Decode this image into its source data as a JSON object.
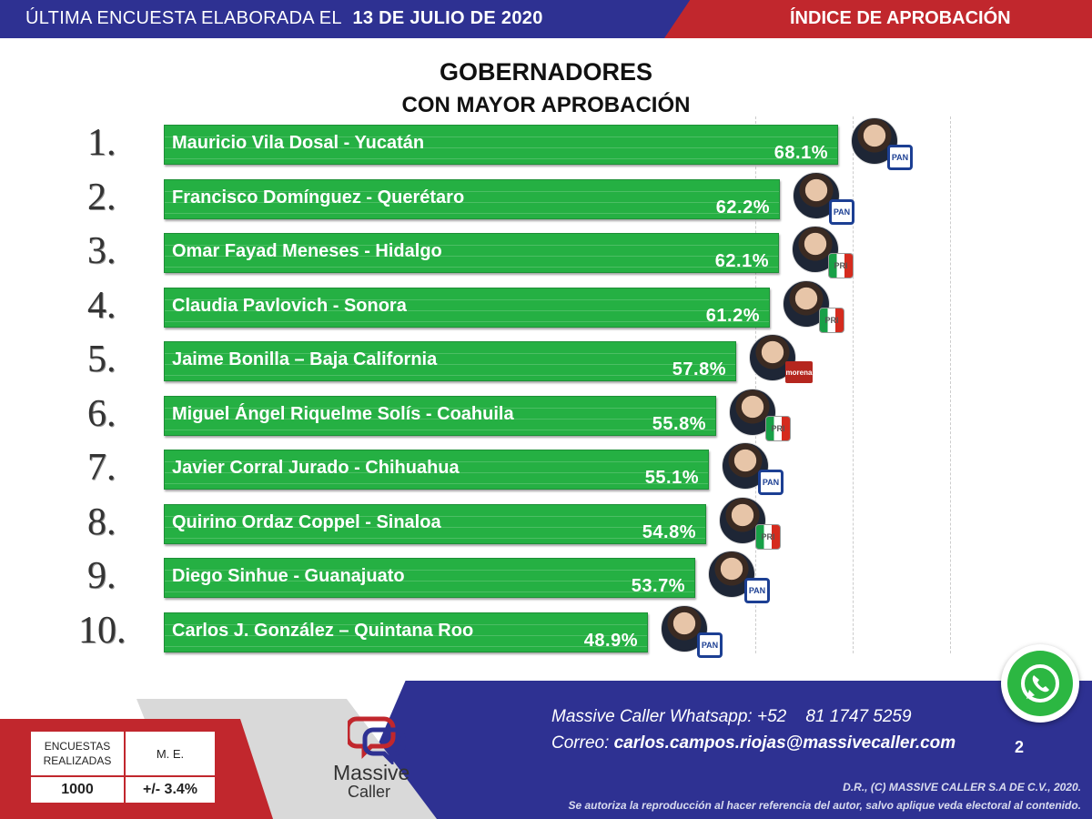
{
  "header": {
    "survey_prefix": "ÚLTIMA ENCUESTA ELABORADA EL",
    "survey_date": "13 DE JULIO DE 2020",
    "section": "ÍNDICE DE APROBACIÓN",
    "colors": {
      "blue": "#2e3192",
      "red": "#c1272d"
    }
  },
  "title": "GOBERNADORES",
  "subtitle": "CON MAYOR APROBACIÓN",
  "chart_data": {
    "type": "bar",
    "orientation": "horizontal",
    "bar_color": "#25b043",
    "categories": [
      "Mauricio Vila Dosal - Yucatán",
      "Francisco Domínguez - Querétaro",
      "Omar Fayad Meneses - Hidalgo",
      "Claudia Pavlovich - Sonora",
      "Jaime Bonilla – Baja California",
      "Miguel Ángel Riquelme Solís - Coahuila",
      "Javier Corral Jurado - Chihuahua",
      "Quirino Ordaz Coppel - Sinaloa",
      "Diego Sinhue - Guanajuato",
      "Carlos J. González – Quintana Roo"
    ],
    "values": [
      68.1,
      62.2,
      62.1,
      61.2,
      57.8,
      55.8,
      55.1,
      54.8,
      53.7,
      48.9
    ],
    "value_labels": [
      "68.1%",
      "62.2%",
      "62.1%",
      "61.2%",
      "57.8%",
      "55.8%",
      "55.1%",
      "54.8%",
      "53.7%",
      "48.9%"
    ],
    "ranks": [
      "1.",
      "2.",
      "3.",
      "4.",
      "5.",
      "6.",
      "7.",
      "8.",
      "9.",
      "10."
    ],
    "parties": [
      "PAN",
      "PAN",
      "PRI",
      "PRI",
      "morena",
      "PRI",
      "PAN",
      "PRI",
      "PAN",
      "PAN"
    ],
    "grid": true
  },
  "sample_table": {
    "col1_header": "ENCUESTAS REALIZADAS",
    "col2_header": "M. E.",
    "col1_value": "1000",
    "col2_value": "+/- 3.4%"
  },
  "logo": {
    "line1": "Massive",
    "line2": "Caller"
  },
  "contact": {
    "whatsapp_label": "Massive Caller Whatsapp: +52",
    "whatsapp_number": "81 1747 5259",
    "email_label": "Correo:",
    "email": "carlos.campos.riojas@massivecaller.com"
  },
  "page_number": "2",
  "icons": {
    "whatsapp": "whatsapp-icon"
  },
  "copyright": "D.R., (C) MASSIVE CALLER S.A DE C.V., 2020.",
  "disclaimer": "Se autoriza la reproducción al hacer referencia del autor, salvo aplique veda electoral al contenido."
}
